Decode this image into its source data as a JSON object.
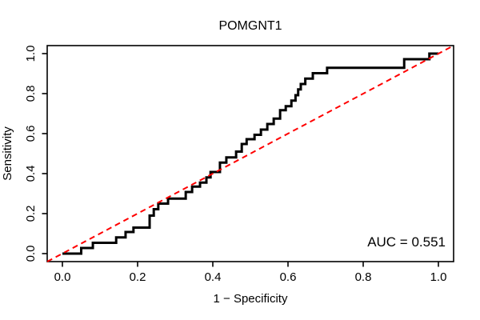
{
  "figure": {
    "title": "POMGNT1",
    "xlabel": "1 − Specificity",
    "ylabel": "Sensitivity",
    "auc_label": "AUC = 0.551"
  },
  "colors": {
    "roc_curve": "#000000",
    "chance_diagonal": "#FF0000",
    "plot_border": "#000000",
    "background": "#FFFFFF"
  },
  "chart_data": {
    "type": "line",
    "subtype": "roc-step-curve",
    "title": "POMGNT1",
    "xlabel": "1 − Specificity",
    "ylabel": "Sensitivity",
    "xlim": [
      0,
      1
    ],
    "ylim": [
      0,
      1
    ],
    "xticks": [
      "0.0",
      "0.2",
      "0.4",
      "0.6",
      "0.8",
      "1.0"
    ],
    "yticks": [
      "0.0",
      "0.2",
      "0.4",
      "0.6",
      "0.8",
      "1.0"
    ],
    "grid": false,
    "legend": "none",
    "auc": 0.551,
    "annotation": "AUC = 0.551",
    "annotation_position": "bottom-right",
    "series": [
      {
        "name": "ROC curve",
        "color": "#000000",
        "style": "solid",
        "width": 3,
        "points": [
          [
            0.0,
            0.0
          ],
          [
            0.05,
            0.0
          ],
          [
            0.05,
            0.028
          ],
          [
            0.081,
            0.028
          ],
          [
            0.081,
            0.054
          ],
          [
            0.143,
            0.054
          ],
          [
            0.143,
            0.081
          ],
          [
            0.168,
            0.081
          ],
          [
            0.168,
            0.108
          ],
          [
            0.189,
            0.108
          ],
          [
            0.189,
            0.13
          ],
          [
            0.232,
            0.13
          ],
          [
            0.232,
            0.19
          ],
          [
            0.243,
            0.19
          ],
          [
            0.243,
            0.222
          ],
          [
            0.255,
            0.222
          ],
          [
            0.255,
            0.25
          ],
          [
            0.281,
            0.25
          ],
          [
            0.281,
            0.275
          ],
          [
            0.328,
            0.275
          ],
          [
            0.328,
            0.308
          ],
          [
            0.345,
            0.308
          ],
          [
            0.345,
            0.335
          ],
          [
            0.366,
            0.335
          ],
          [
            0.366,
            0.355
          ],
          [
            0.383,
            0.355
          ],
          [
            0.383,
            0.381
          ],
          [
            0.394,
            0.381
          ],
          [
            0.394,
            0.408
          ],
          [
            0.419,
            0.408
          ],
          [
            0.419,
            0.455
          ],
          [
            0.436,
            0.455
          ],
          [
            0.436,
            0.481
          ],
          [
            0.462,
            0.481
          ],
          [
            0.462,
            0.51
          ],
          [
            0.477,
            0.51
          ],
          [
            0.477,
            0.548
          ],
          [
            0.49,
            0.548
          ],
          [
            0.49,
            0.572
          ],
          [
            0.511,
            0.572
          ],
          [
            0.511,
            0.594
          ],
          [
            0.528,
            0.594
          ],
          [
            0.528,
            0.62
          ],
          [
            0.545,
            0.62
          ],
          [
            0.545,
            0.648
          ],
          [
            0.562,
            0.648
          ],
          [
            0.562,
            0.675
          ],
          [
            0.579,
            0.675
          ],
          [
            0.579,
            0.717
          ],
          [
            0.594,
            0.717
          ],
          [
            0.594,
            0.737
          ],
          [
            0.609,
            0.737
          ],
          [
            0.609,
            0.765
          ],
          [
            0.62,
            0.765
          ],
          [
            0.62,
            0.792
          ],
          [
            0.627,
            0.792
          ],
          [
            0.627,
            0.821
          ],
          [
            0.634,
            0.821
          ],
          [
            0.634,
            0.848
          ],
          [
            0.646,
            0.848
          ],
          [
            0.646,
            0.875
          ],
          [
            0.666,
            0.875
          ],
          [
            0.666,
            0.902
          ],
          [
            0.704,
            0.902
          ],
          [
            0.704,
            0.929
          ],
          [
            0.909,
            0.929
          ],
          [
            0.909,
            0.972
          ],
          [
            0.976,
            0.972
          ],
          [
            0.976,
            1.0
          ],
          [
            1.0,
            1.0
          ]
        ]
      },
      {
        "name": "Chance diagonal",
        "color": "#FF0000",
        "style": "dashed",
        "width": 2,
        "extend_to_box": true,
        "points": [
          [
            0,
            0
          ],
          [
            1,
            1
          ]
        ]
      }
    ]
  }
}
